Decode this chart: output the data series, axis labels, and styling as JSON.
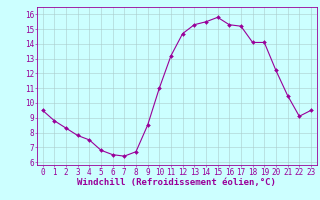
{
  "x": [
    0,
    1,
    2,
    3,
    4,
    5,
    6,
    7,
    8,
    9,
    10,
    11,
    12,
    13,
    14,
    15,
    16,
    17,
    18,
    19,
    20,
    21,
    22,
    23
  ],
  "y": [
    9.5,
    8.8,
    8.3,
    7.8,
    7.5,
    6.8,
    6.5,
    6.4,
    6.7,
    8.5,
    11.0,
    13.2,
    14.7,
    15.3,
    15.5,
    15.8,
    15.3,
    15.2,
    14.1,
    14.1,
    12.2,
    10.5,
    9.1,
    9.5
  ],
  "line_color": "#990099",
  "marker": "D",
  "marker_size": 2.0,
  "bg_color": "#ccffff",
  "grid_color": "#aacccc",
  "xlabel": "Windchill (Refroidissement éolien,°C)",
  "xlabel_color": "#990099",
  "xlabel_fontsize": 6.5,
  "ylim": [
    5.8,
    16.5
  ],
  "xlim": [
    -0.5,
    23.5
  ],
  "tick_color": "#990099",
  "tick_fontsize": 5.5,
  "axis_linewidth": 0.6
}
